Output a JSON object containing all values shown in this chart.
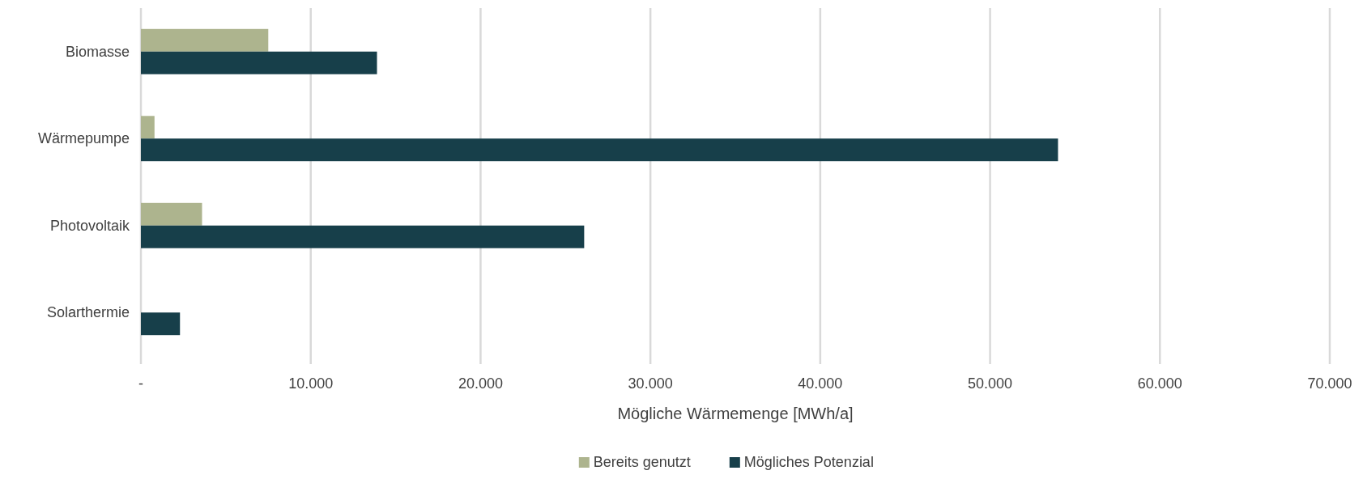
{
  "chart_data": {
    "type": "bar",
    "orientation": "horizontal",
    "categories": [
      "Biomasse",
      "Wärmepumpe",
      "Photovoltaik",
      "Solarthermie"
    ],
    "series": [
      {
        "name": "Bereits genutzt",
        "color": "#adb48e",
        "values": [
          7500,
          800,
          3600,
          0
        ]
      },
      {
        "name": "Mögliches Potenzial",
        "color": "#173f4a",
        "values": [
          13900,
          54000,
          26100,
          2300
        ]
      }
    ],
    "xlabel": "Mögliche Wärmemenge [MWh/a]",
    "xlim": [
      0,
      70000
    ],
    "xticks": [
      {
        "value": 0,
        "label": "-"
      },
      {
        "value": 10000,
        "label": "10.000"
      },
      {
        "value": 20000,
        "label": "20.000"
      },
      {
        "value": 30000,
        "label": "30.000"
      },
      {
        "value": 40000,
        "label": "40.000"
      },
      {
        "value": 50000,
        "label": "50.000"
      },
      {
        "value": 60000,
        "label": "60.000"
      },
      {
        "value": 70000,
        "label": "70.000"
      }
    ],
    "grid": "x",
    "legend": "bottom"
  }
}
